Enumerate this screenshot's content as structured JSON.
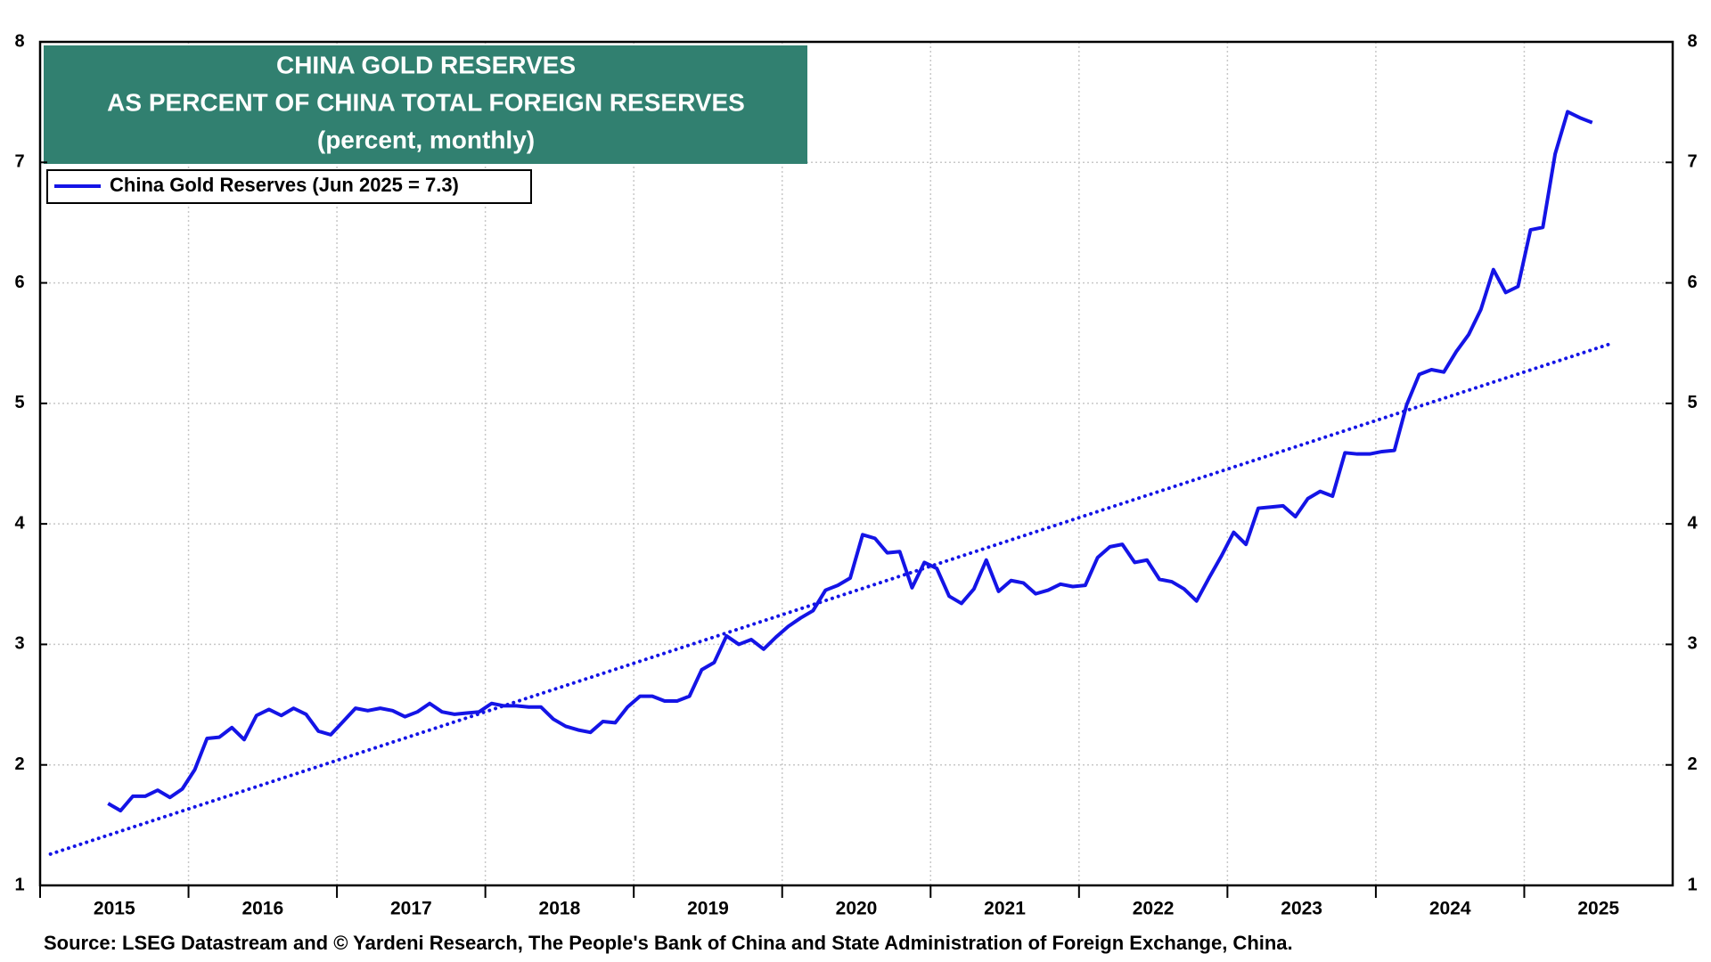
{
  "chart_data": {
    "type": "line",
    "title": [
      "CHINA GOLD RESERVES",
      "AS PERCENT OF CHINA TOTAL FOREIGN RESERVES"
    ],
    "subtitle": "(percent, monthly)",
    "source": "Source: LSEG Datastream and © Yardeni Research, The People's Bank of China and State Administration of Foreign Exchange, China.",
    "xlim": [
      2015,
      2026
    ],
    "xticks": [
      2015,
      2016,
      2017,
      2018,
      2019,
      2020,
      2021,
      2022,
      2023,
      2024,
      2025
    ],
    "ylim": [
      1,
      8
    ],
    "yticks": [
      1,
      2,
      3,
      4,
      5,
      6,
      7,
      8
    ],
    "y2lim": [
      1,
      8
    ],
    "y2ticks": [
      1,
      2,
      3,
      4,
      5,
      6,
      7,
      8
    ],
    "grid": true,
    "legend": "upper-left",
    "x": [
      2015.458,
      2015.542,
      2015.625,
      2015.708,
      2015.792,
      2015.875,
      2015.958,
      2016.042,
      2016.125,
      2016.208,
      2016.292,
      2016.375,
      2016.458,
      2016.542,
      2016.625,
      2016.708,
      2016.792,
      2016.875,
      2016.958,
      2017.042,
      2017.125,
      2017.208,
      2017.292,
      2017.375,
      2017.458,
      2017.542,
      2017.625,
      2017.708,
      2017.792,
      2017.875,
      2017.958,
      2018.042,
      2018.125,
      2018.208,
      2018.292,
      2018.375,
      2018.458,
      2018.542,
      2018.625,
      2018.708,
      2018.792,
      2018.875,
      2018.958,
      2019.042,
      2019.125,
      2019.208,
      2019.292,
      2019.375,
      2019.458,
      2019.542,
      2019.625,
      2019.708,
      2019.792,
      2019.875,
      2019.958,
      2020.042,
      2020.125,
      2020.208,
      2020.292,
      2020.375,
      2020.458,
      2020.542,
      2020.625,
      2020.708,
      2020.792,
      2020.875,
      2020.958,
      2021.042,
      2021.125,
      2021.208,
      2021.292,
      2021.375,
      2021.458,
      2021.542,
      2021.625,
      2021.708,
      2021.792,
      2021.875,
      2021.958,
      2022.042,
      2022.125,
      2022.208,
      2022.292,
      2022.375,
      2022.458,
      2022.542,
      2022.625,
      2022.708,
      2022.792,
      2022.875,
      2022.958,
      2023.042,
      2023.125,
      2023.208,
      2023.292,
      2023.375,
      2023.458,
      2023.542,
      2023.625,
      2023.708,
      2023.792,
      2023.875,
      2023.958,
      2024.042,
      2024.125,
      2024.208,
      2024.292,
      2024.375,
      2024.458,
      2024.542,
      2024.625,
      2024.708,
      2024.792,
      2024.875,
      2024.958,
      2025.042,
      2025.125,
      2025.208,
      2025.292,
      2025.375,
      2025.458
    ],
    "series": [
      {
        "name": "China Gold Reserves (Jun 2025 = 7.3)",
        "color": "#1414e6",
        "values": [
          1.68,
          1.62,
          1.74,
          1.74,
          1.79,
          1.73,
          1.8,
          1.96,
          2.22,
          2.23,
          2.31,
          2.21,
          2.41,
          2.46,
          2.41,
          2.47,
          2.42,
          2.28,
          2.25,
          2.36,
          2.47,
          2.45,
          2.47,
          2.45,
          2.4,
          2.44,
          2.51,
          2.44,
          2.42,
          2.43,
          2.44,
          2.51,
          2.49,
          2.49,
          2.48,
          2.48,
          2.38,
          2.32,
          2.29,
          2.27,
          2.36,
          2.35,
          2.48,
          2.57,
          2.57,
          2.53,
          2.53,
          2.57,
          2.79,
          2.85,
          3.07,
          3.0,
          3.04,
          2.96,
          3.06,
          3.15,
          3.22,
          3.28,
          3.45,
          3.49,
          3.55,
          3.91,
          3.88,
          3.76,
          3.77,
          3.47,
          3.68,
          3.63,
          3.4,
          3.34,
          3.46,
          3.7,
          3.44,
          3.53,
          3.51,
          3.42,
          3.45,
          3.5,
          3.48,
          3.49,
          3.72,
          3.81,
          3.83,
          3.68,
          3.7,
          3.54,
          3.52,
          3.46,
          3.36,
          3.55,
          3.73,
          3.93,
          3.83,
          4.13,
          4.14,
          4.15,
          4.06,
          4.21,
          4.27,
          4.23,
          4.59,
          4.58,
          4.58,
          4.6,
          4.61,
          4.99,
          5.24,
          5.28,
          5.26,
          5.43,
          5.57,
          5.78,
          6.11,
          5.92,
          5.97,
          6.44,
          6.46,
          7.07,
          7.42,
          7.37,
          7.33
        ]
      }
    ],
    "trend": {
      "color": "#1414e6",
      "x": [
        2015.07,
        2025.57
      ],
      "values": [
        1.26,
        5.49
      ]
    }
  }
}
